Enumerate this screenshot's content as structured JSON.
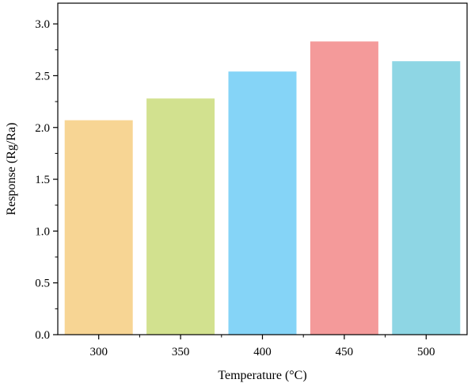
{
  "chart_data": {
    "type": "bar",
    "title": "",
    "xlabel": "Temperature (°C)",
    "ylabel": "Response (Rg/Ra)",
    "categories": [
      "300",
      "350",
      "400",
      "450",
      "500"
    ],
    "values": [
      2.07,
      2.28,
      2.54,
      2.83,
      2.64
    ],
    "colors": [
      "#f7d594",
      "#d2e18f",
      "#85d4f7",
      "#f49a9a",
      "#8ed6e4"
    ],
    "ylim": [
      0,
      3.2
    ],
    "yticks": [
      "0.0",
      "0.5",
      "1.0",
      "1.5",
      "2.0",
      "2.5",
      "3.0"
    ],
    "grid": false,
    "legend": "none"
  }
}
